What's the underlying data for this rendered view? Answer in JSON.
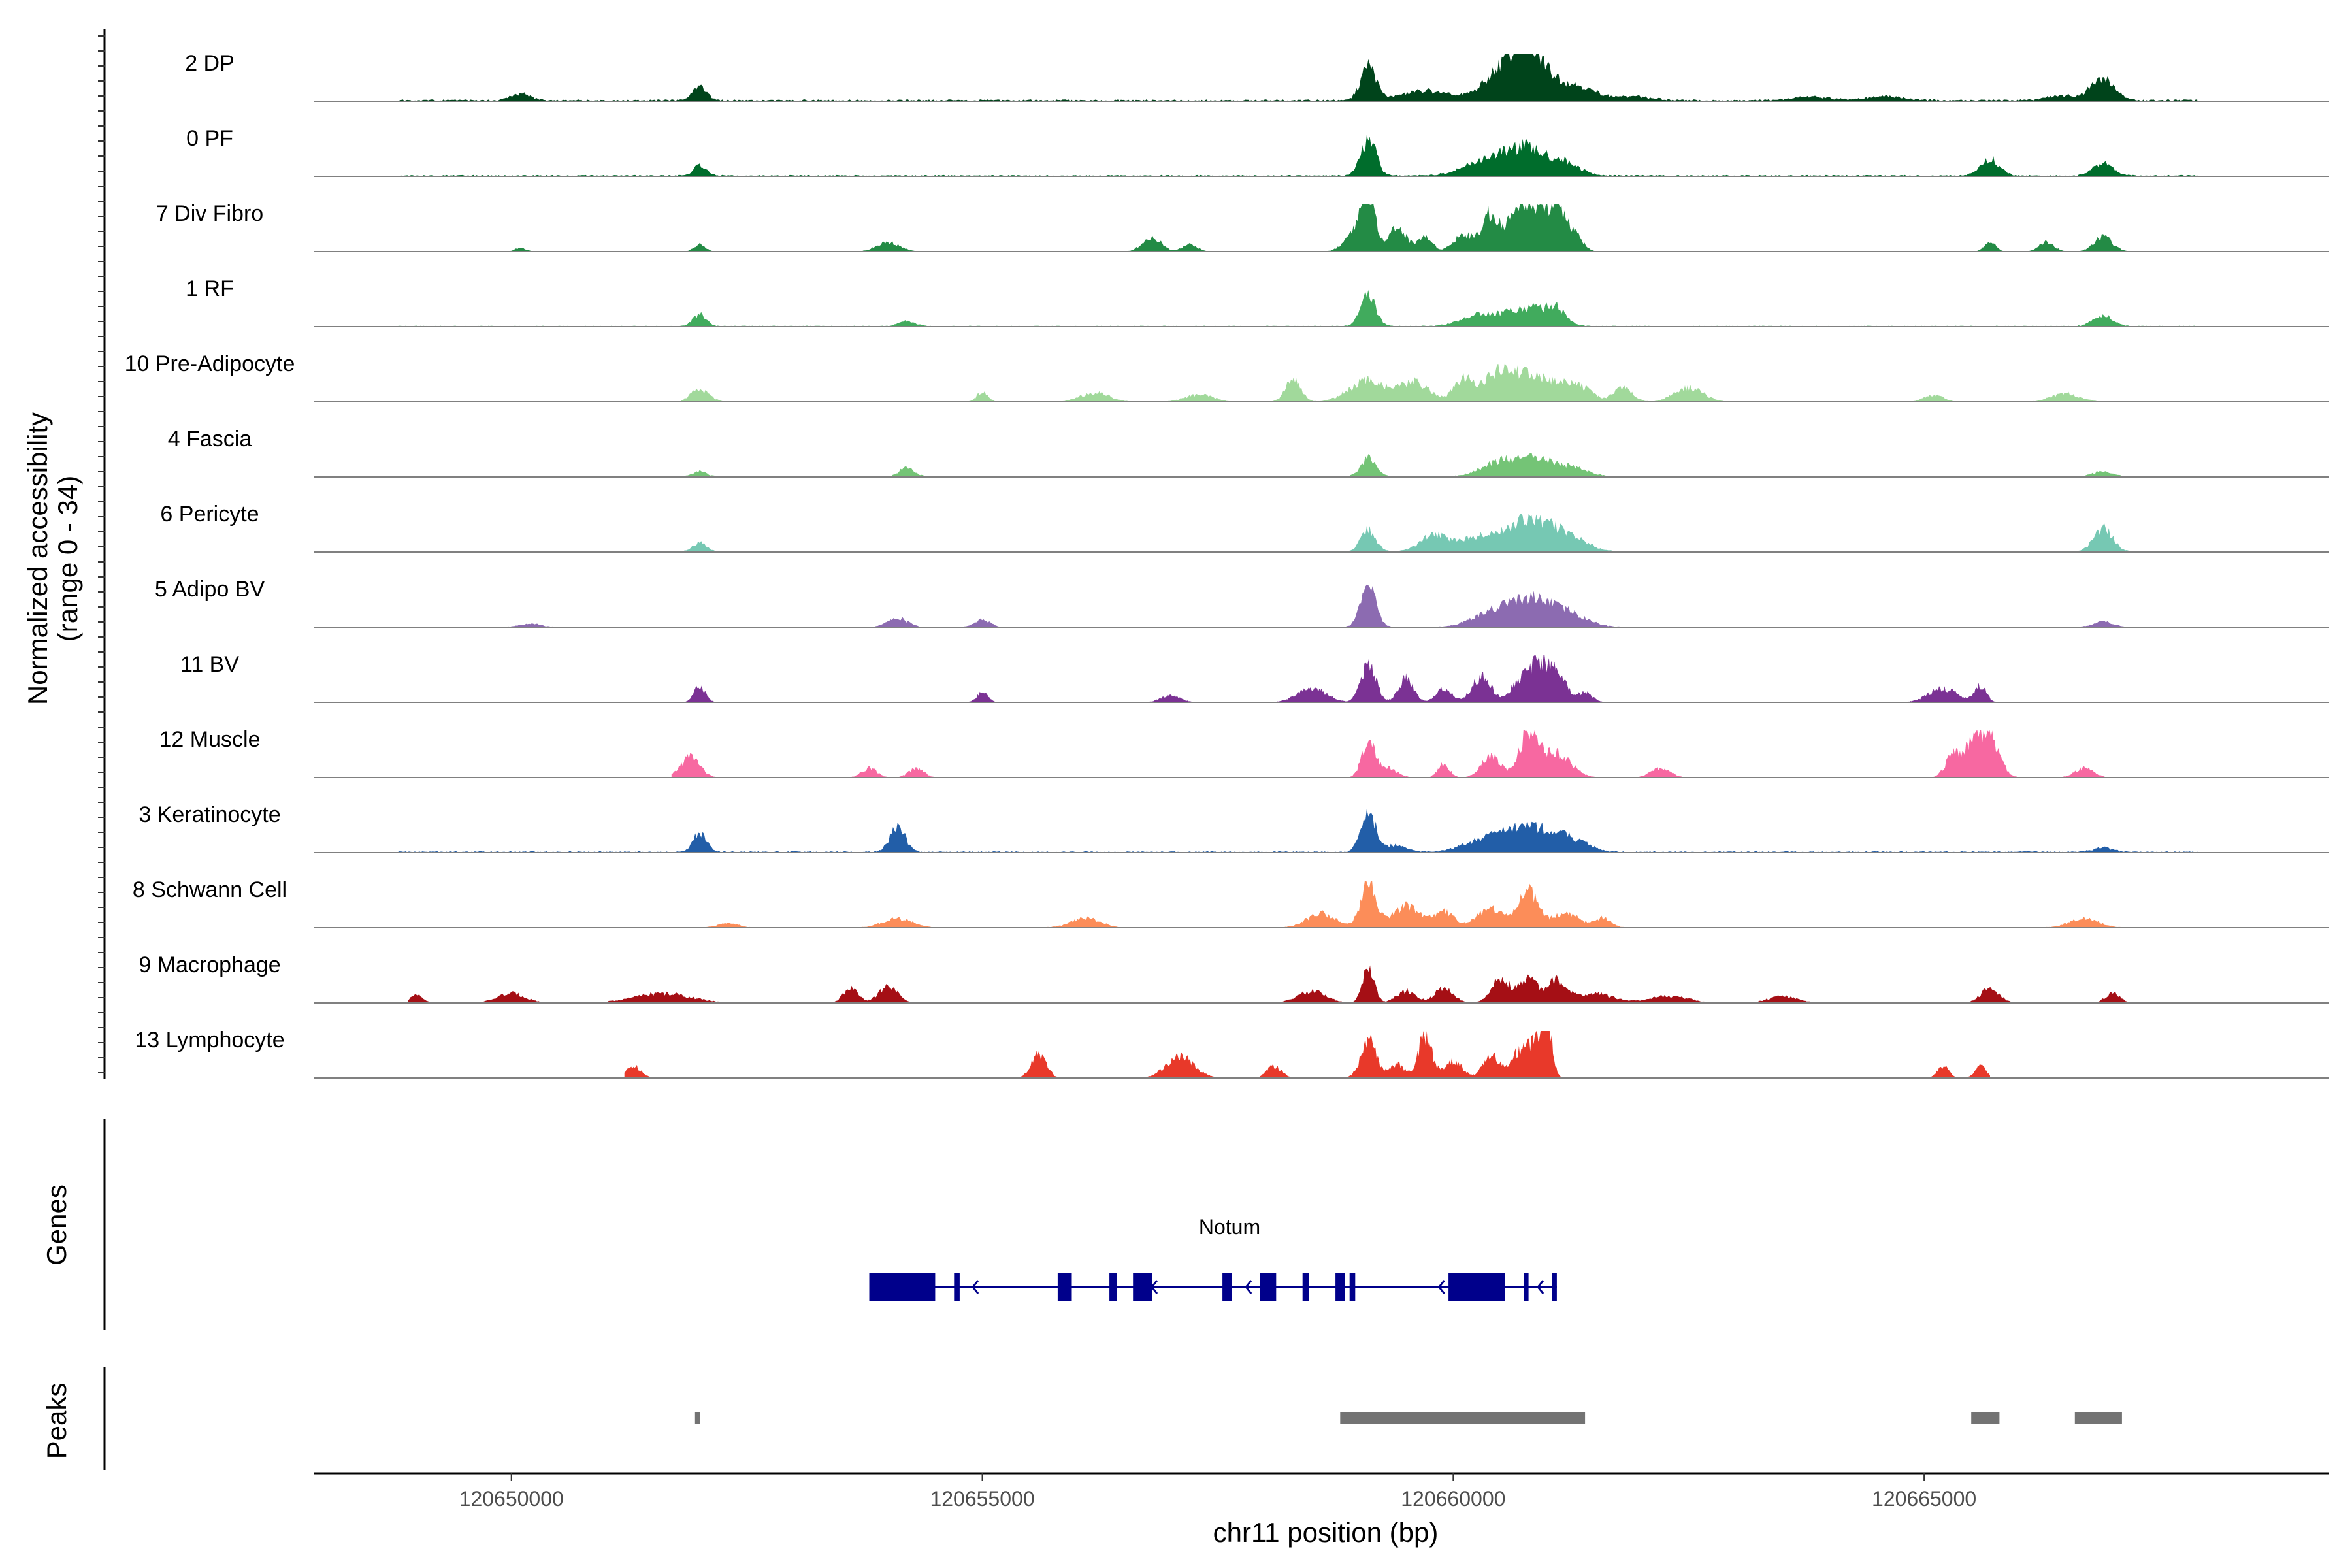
{
  "chart_data": {
    "type": "area",
    "chromosome": "chr11",
    "xlabel": "chr11 position (bp)",
    "ylabel_line1": "Normalized accessibility",
    "ylabel_line2": "(range 0 - 34)",
    "yrange": [
      0,
      34
    ],
    "xlim": [
      120647900,
      120669300
    ],
    "x_ticks": [
      {
        "value": 120650000,
        "label": "120650000"
      },
      {
        "value": 120655000,
        "label": "120655000"
      },
      {
        "value": 120660000,
        "label": "120660000"
      },
      {
        "value": 120665000,
        "label": "120665000"
      }
    ],
    "series": [
      {
        "name": "2 DP",
        "color": "#00441b",
        "bg": 0.04,
        "extent": [
          120648800,
          120667900
        ],
        "peaks": [
          [
            120650100,
            0.15,
            100
          ],
          [
            120652000,
            0.3,
            70
          ],
          [
            120659100,
            0.75,
            80
          ],
          [
            120659700,
            0.2,
            250
          ],
          [
            120660500,
            0.45,
            200
          ],
          [
            120660800,
            1.0,
            200
          ],
          [
            120661300,
            0.3,
            200
          ],
          [
            120661900,
            0.08,
            200
          ],
          [
            120663800,
            0.08,
            200
          ],
          [
            120664600,
            0.08,
            200
          ],
          [
            120666900,
            0.45,
            120
          ],
          [
            120666500,
            0.1,
            200
          ]
        ]
      },
      {
        "name": "0 PF",
        "color": "#006d2c",
        "bg": 0.03,
        "extent": [
          120648800,
          120667900
        ],
        "peaks": [
          [
            120652000,
            0.22,
            70
          ],
          [
            120659100,
            0.8,
            80
          ],
          [
            120660400,
            0.35,
            250
          ],
          [
            120660800,
            0.5,
            200
          ],
          [
            120661200,
            0.25,
            150
          ],
          [
            120665700,
            0.35,
            100
          ],
          [
            120666900,
            0.3,
            100
          ]
        ]
      },
      {
        "name": "7 Div Fibro",
        "color": "#238b45",
        "bg": 0.0,
        "extent": [
          120649500,
          120667800
        ],
        "peaks": [
          [
            120659000,
            0.55,
            120
          ],
          [
            120659100,
            1.0,
            60
          ],
          [
            120659400,
            0.5,
            100
          ],
          [
            120659700,
            0.3,
            80
          ],
          [
            120660100,
            0.35,
            100
          ],
          [
            120660400,
            0.8,
            100
          ],
          [
            120660700,
            0.95,
            100
          ],
          [
            120660900,
            0.8,
            100
          ],
          [
            120661100,
            0.85,
            100
          ],
          [
            120661300,
            0.3,
            80
          ],
          [
            120654000,
            0.2,
            120
          ],
          [
            120656800,
            0.3,
            100
          ],
          [
            120657200,
            0.15,
            80
          ],
          [
            120665700,
            0.2,
            60
          ],
          [
            120666300,
            0.2,
            80
          ],
          [
            120666900,
            0.3,
            100
          ],
          [
            120652000,
            0.15,
            60
          ],
          [
            120650100,
            0.08,
            60
          ]
        ]
      },
      {
        "name": "1 RF",
        "color": "#41ab5d",
        "bg": 0.02,
        "extent": [
          120648800,
          120667900
        ],
        "peaks": [
          [
            120652000,
            0.25,
            70
          ],
          [
            120654200,
            0.12,
            80
          ],
          [
            120659100,
            0.65,
            80
          ],
          [
            120660300,
            0.25,
            200
          ],
          [
            120660800,
            0.4,
            200
          ],
          [
            120661100,
            0.3,
            100
          ],
          [
            120666900,
            0.25,
            100
          ]
        ]
      },
      {
        "name": "10 Pre-Adipocyte",
        "color": "#a1d99b",
        "bg": 0.0,
        "extent": [
          120651800,
          120668200
        ],
        "peaks": [
          [
            120652000,
            0.25,
            100
          ],
          [
            120655000,
            0.2,
            60
          ],
          [
            120658300,
            0.5,
            80
          ],
          [
            120659100,
            0.45,
            200
          ],
          [
            120659600,
            0.4,
            150
          ],
          [
            120660100,
            0.4,
            100
          ],
          [
            120660500,
            0.6,
            200
          ],
          [
            120660900,
            0.45,
            200
          ],
          [
            120661300,
            0.35,
            150
          ],
          [
            120661800,
            0.3,
            100
          ],
          [
            120662500,
            0.3,
            150
          ],
          [
            120656200,
            0.2,
            150
          ],
          [
            120657300,
            0.15,
            150
          ],
          [
            120665100,
            0.15,
            100
          ],
          [
            120666500,
            0.18,
            150
          ]
        ]
      },
      {
        "name": "4 Fascia",
        "color": "#74c476",
        "bg": 0.02,
        "extent": [
          120648800,
          120667900
        ],
        "peaks": [
          [
            120652000,
            0.12,
            70
          ],
          [
            120654200,
            0.2,
            80
          ],
          [
            120659100,
            0.4,
            80
          ],
          [
            120660500,
            0.3,
            200
          ],
          [
            120660900,
            0.35,
            200
          ],
          [
            120661300,
            0.15,
            150
          ],
          [
            120666900,
            0.12,
            100
          ]
        ]
      },
      {
        "name": "6 Pericyte",
        "color": "#76c8b3",
        "bg": 0.02,
        "extent": [
          120648800,
          120667900
        ],
        "peaks": [
          [
            120652000,
            0.2,
            70
          ],
          [
            120659100,
            0.45,
            80
          ],
          [
            120659800,
            0.35,
            150
          ],
          [
            120660300,
            0.35,
            200
          ],
          [
            120660800,
            0.65,
            200
          ],
          [
            120661200,
            0.35,
            200
          ],
          [
            120666900,
            0.5,
            100
          ]
        ]
      },
      {
        "name": "5 Adipo BV",
        "color": "#8c6bb1",
        "bg": 0.01,
        "extent": [
          120649000,
          120667500
        ],
        "peaks": [
          [
            120654100,
            0.2,
            100
          ],
          [
            120655000,
            0.15,
            80
          ],
          [
            120659100,
            0.85,
            80
          ],
          [
            120660400,
            0.3,
            200
          ],
          [
            120660800,
            0.55,
            200
          ],
          [
            120661200,
            0.3,
            200
          ],
          [
            120666900,
            0.12,
            100
          ],
          [
            120650200,
            0.08,
            100
          ]
        ]
      },
      {
        "name": "11 BV",
        "color": "#7b3294",
        "bg": 0.0,
        "extent": [
          120651800,
          120665800
        ],
        "peaks": [
          [
            120652000,
            0.35,
            60
          ],
          [
            120655000,
            0.2,
            60
          ],
          [
            120657000,
            0.15,
            100
          ],
          [
            120658500,
            0.3,
            150
          ],
          [
            120659100,
            0.8,
            80
          ],
          [
            120659500,
            0.5,
            80
          ],
          [
            120659900,
            0.3,
            80
          ],
          [
            120660300,
            0.55,
            100
          ],
          [
            120660700,
            0.4,
            100
          ],
          [
            120660900,
            0.75,
            100
          ],
          [
            120661100,
            0.6,
            100
          ],
          [
            120661400,
            0.2,
            80
          ],
          [
            120665200,
            0.3,
            150
          ],
          [
            120665600,
            0.35,
            60
          ]
        ]
      },
      {
        "name": "12 Muscle",
        "color": "#f768a1",
        "bg": 0.0,
        "extent": [
          120651700,
          120667500
        ],
        "peaks": [
          [
            120651900,
            0.45,
            100
          ],
          [
            120653800,
            0.2,
            80
          ],
          [
            120654300,
            0.2,
            80
          ],
          [
            120659100,
            0.75,
            70
          ],
          [
            120659300,
            0.2,
            100
          ],
          [
            120659900,
            0.3,
            60
          ],
          [
            120660400,
            0.45,
            100
          ],
          [
            120660800,
            0.9,
            100
          ],
          [
            120661100,
            0.5,
            150
          ],
          [
            120662200,
            0.2,
            100
          ],
          [
            120665300,
            0.4,
            80
          ],
          [
            120665700,
            0.85,
            100
          ],
          [
            120665500,
            0.6,
            100
          ],
          [
            120666700,
            0.2,
            100
          ]
        ]
      },
      {
        "name": "3 Keratinocyte",
        "color": "#225ea8",
        "bg": 0.03,
        "extent": [
          120648800,
          120667900
        ],
        "peaks": [
          [
            120652000,
            0.4,
            70
          ],
          [
            120654100,
            0.55,
            80
          ],
          [
            120659100,
            0.8,
            80
          ],
          [
            120659400,
            0.15,
            100
          ],
          [
            120660400,
            0.3,
            250
          ],
          [
            120660800,
            0.45,
            200
          ],
          [
            120661200,
            0.3,
            200
          ],
          [
            120666900,
            0.1,
            100
          ]
        ]
      },
      {
        "name": "8 Schwann Cell",
        "color": "#fc8d59",
        "bg": 0.01,
        "extent": [
          120649800,
          120668200
        ],
        "peaks": [
          [
            120654100,
            0.2,
            150
          ],
          [
            120656100,
            0.2,
            150
          ],
          [
            120658600,
            0.3,
            150
          ],
          [
            120659100,
            1.0,
            80
          ],
          [
            120659500,
            0.45,
            150
          ],
          [
            120659900,
            0.35,
            100
          ],
          [
            120660400,
            0.4,
            150
          ],
          [
            120660800,
            0.75,
            100
          ],
          [
            120661200,
            0.3,
            150
          ],
          [
            120661600,
            0.2,
            80
          ],
          [
            120666700,
            0.2,
            150
          ],
          [
            120652300,
            0.1,
            100
          ]
        ]
      },
      {
        "name": "9 Macrophage",
        "color": "#a50f15",
        "bg": 0.0,
        "extent": [
          120648900,
          120667200
        ],
        "peaks": [
          [
            120649000,
            0.2,
            60
          ],
          [
            120650000,
            0.2,
            150
          ],
          [
            120651600,
            0.2,
            300
          ],
          [
            120653600,
            0.3,
            80
          ],
          [
            120654000,
            0.35,
            100
          ],
          [
            120658500,
            0.25,
            150
          ],
          [
            120659100,
            0.8,
            60
          ],
          [
            120659500,
            0.25,
            100
          ],
          [
            120659900,
            0.3,
            100
          ],
          [
            120660500,
            0.5,
            100
          ],
          [
            120660800,
            0.5,
            100
          ],
          [
            120661100,
            0.45,
            100
          ],
          [
            120661500,
            0.2,
            200
          ],
          [
            120665700,
            0.3,
            100
          ],
          [
            120667000,
            0.2,
            80
          ],
          [
            120662300,
            0.15,
            200
          ],
          [
            120663500,
            0.15,
            150
          ]
        ]
      },
      {
        "name": "13 Lymphocyte",
        "color": "#e8392a",
        "bg": 0.0,
        "extent": [
          120651200,
          120665700
        ],
        "peaks": [
          [
            120651300,
            0.25,
            80
          ],
          [
            120655600,
            0.5,
            80
          ],
          [
            120657100,
            0.45,
            150
          ],
          [
            120658100,
            0.25,
            80
          ],
          [
            120659100,
            0.85,
            80
          ],
          [
            120659700,
            0.9,
            70
          ],
          [
            120659400,
            0.3,
            80
          ],
          [
            120660400,
            0.5,
            80
          ],
          [
            120660700,
            0.55,
            100
          ],
          [
            120660900,
            0.8,
            80
          ],
          [
            120661000,
            1.0,
            50
          ],
          [
            120660000,
            0.35,
            100
          ],
          [
            120665200,
            0.25,
            60
          ],
          [
            120665600,
            0.25,
            60
          ]
        ]
      }
    ],
    "gene": {
      "name": "Notum",
      "color": "#00008b",
      "start": 120653800,
      "end": 120661100,
      "strand": "-",
      "exons": [
        [
          120653800,
          120654500
        ],
        [
          120654700,
          120654760
        ],
        [
          120655800,
          120655950
        ],
        [
          120656350,
          120656430
        ],
        [
          120656600,
          120656800
        ],
        [
          120657550,
          120657650
        ],
        [
          120657950,
          120658120
        ],
        [
          120658400,
          120658470
        ],
        [
          120658750,
          120658850
        ],
        [
          120658900,
          120658960
        ],
        [
          120659950,
          120660550
        ],
        [
          120660750,
          120660800
        ],
        [
          120661050,
          120661100
        ]
      ],
      "arrows": [
        120654900,
        120656800,
        120657800,
        120659850,
        120660900
      ]
    },
    "peaks_track": {
      "label": "Peaks",
      "color": "#737373",
      "regions": [
        [
          120651950,
          120652000
        ],
        [
          120658800,
          120661400
        ],
        [
          120665500,
          120665800
        ],
        [
          120666600,
          120667100
        ]
      ]
    },
    "genes_track_label": "Genes"
  }
}
